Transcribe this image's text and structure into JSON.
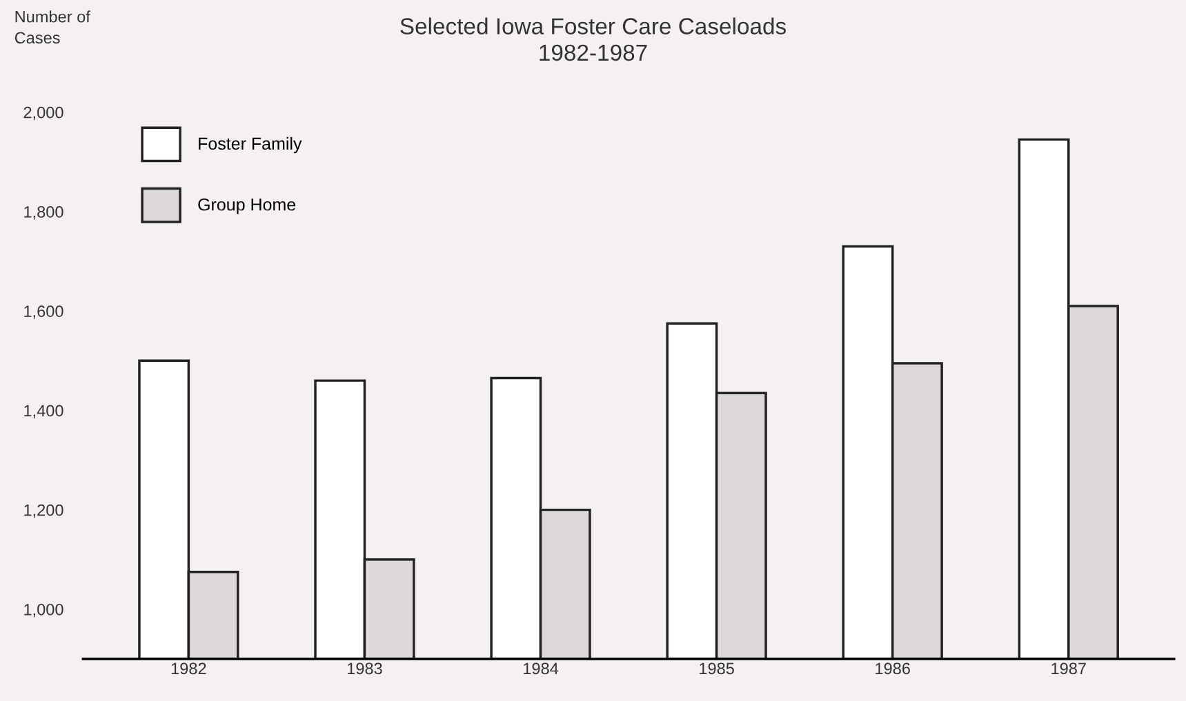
{
  "chart_data": {
    "type": "bar",
    "title": "Selected Iowa Foster Care Caseloads\n1982-1987",
    "ylabel": "Number of\nCases",
    "categories": [
      "1982",
      "1983",
      "1984",
      "1985",
      "1986",
      "1987"
    ],
    "series": [
      {
        "name": "Foster Family",
        "color": "#ffffff",
        "values": [
          1500,
          1460,
          1465,
          1575,
          1730,
          1945
        ]
      },
      {
        "name": "Group Home",
        "color": "#dcd8dc",
        "values": [
          1075,
          1100,
          1200,
          1435,
          1495,
          1610
        ]
      }
    ],
    "ylim": [
      900,
      2000
    ],
    "yticks": [
      {
        "value": 1000,
        "label": "1,000"
      },
      {
        "value": 1200,
        "label": "1,200"
      },
      {
        "value": 1400,
        "label": "1,400"
      },
      {
        "value": 1600,
        "label": "1,600"
      },
      {
        "value": 1800,
        "label": "1,800"
      },
      {
        "value": 2000,
        "label": "2,000"
      }
    ],
    "grid": false,
    "legend": "top left"
  }
}
